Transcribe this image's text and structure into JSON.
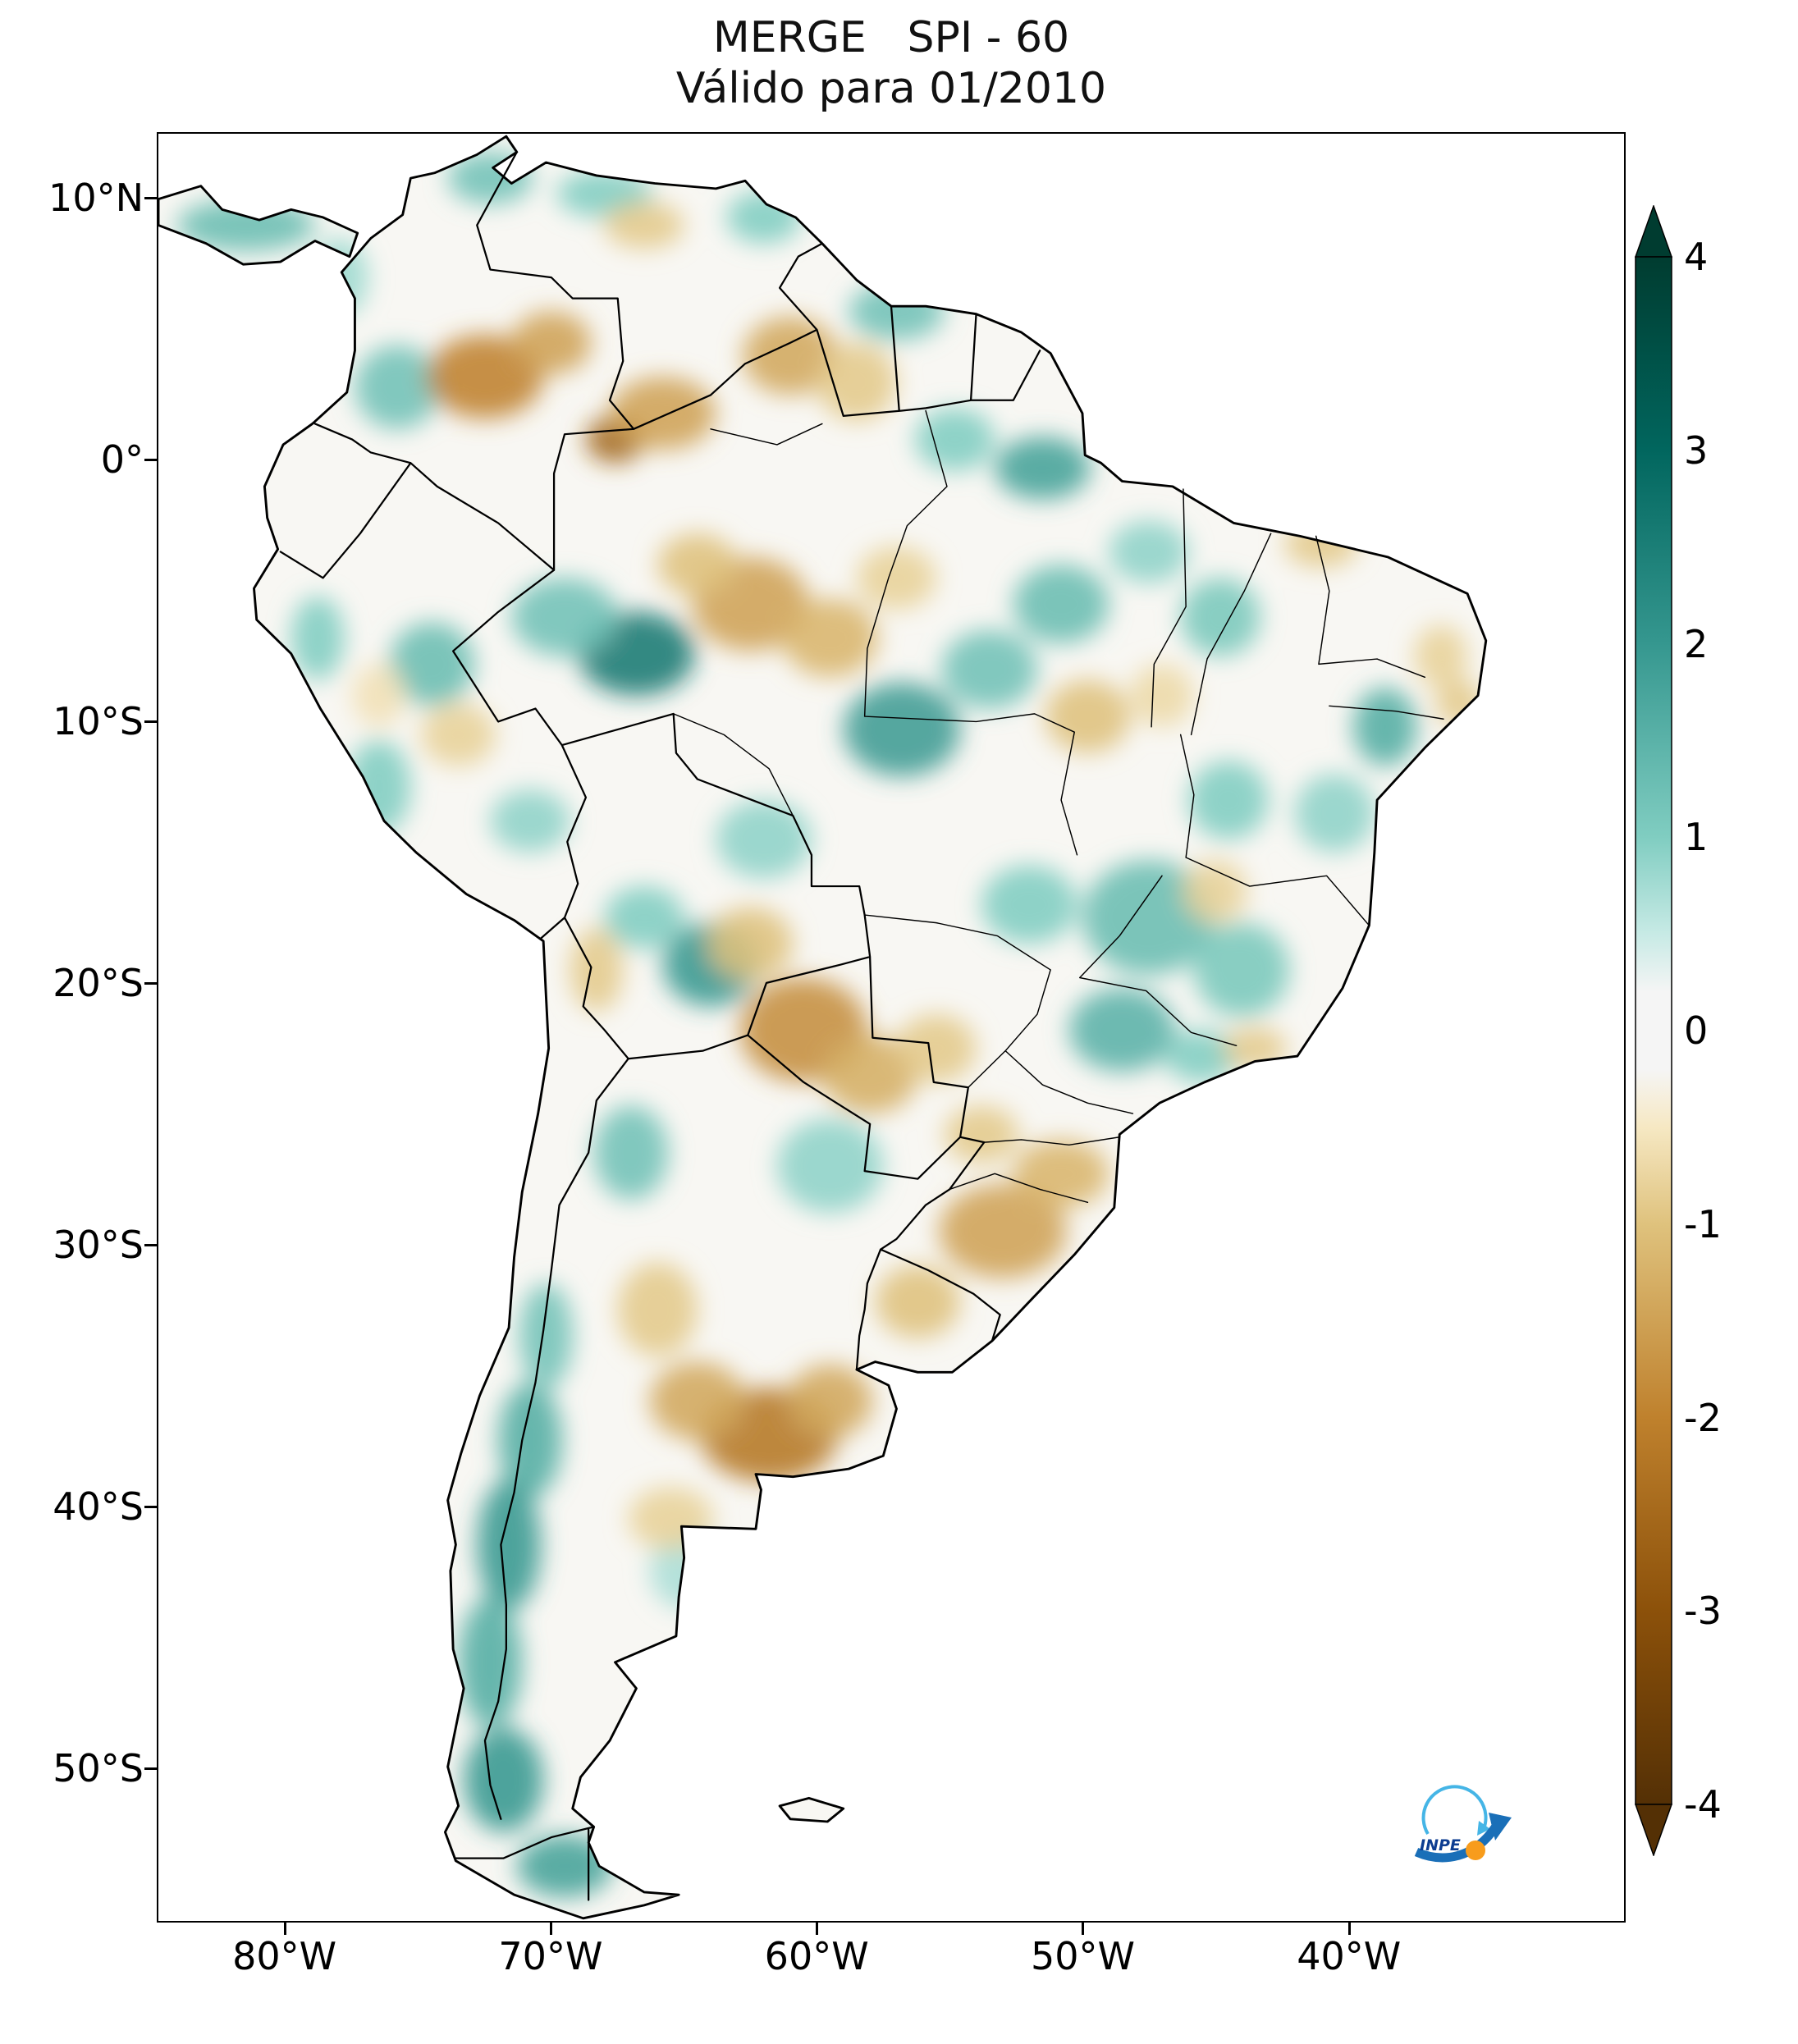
{
  "chart_data": {
    "type": "heatmap",
    "title": "MERGE   SPI - 60",
    "subtitle": "Válido para 01/2010",
    "variable": "SPI-60 (Standardized Precipitation Index, 60 months)",
    "region": "South America",
    "colormap": "BrBG",
    "x_axis": {
      "tick_labels": [
        "80°W",
        "70°W",
        "60°W",
        "50°W",
        "40°W"
      ],
      "tick_lons": [
        -80,
        -70,
        -60,
        -50,
        -40
      ],
      "range_lon": [
        -84.8,
        -29.6
      ]
    },
    "y_axis": {
      "tick_labels": [
        "10°N",
        "0°",
        "10°S",
        "20°S",
        "30°S",
        "40°S",
        "50°S"
      ],
      "tick_lats": [
        10,
        0,
        -10,
        -20,
        -30,
        -40,
        -50
      ],
      "range_lat": [
        -55.9,
        12.5
      ]
    },
    "colorbar": {
      "tick_labels": [
        "4",
        "3",
        "2",
        "1",
        "0",
        "-1",
        "-2",
        "-3",
        "-4"
      ],
      "tick_values": [
        4,
        3,
        2,
        1,
        0,
        -1,
        -2,
        -3,
        -4
      ],
      "min": -4,
      "max": 4,
      "extend": "both",
      "stops": [
        {
          "value": 4,
          "color": "#003c30"
        },
        {
          "value": 3,
          "color": "#01665e"
        },
        {
          "value": 2,
          "color": "#35978f"
        },
        {
          "value": 1,
          "color": "#80cdc1"
        },
        {
          "value": 0.5,
          "color": "#c7eae5"
        },
        {
          "value": 0.2,
          "color": "#f5f5f5"
        },
        {
          "value": -0.2,
          "color": "#f5f5f5"
        },
        {
          "value": -0.5,
          "color": "#f6e8c3"
        },
        {
          "value": -1,
          "color": "#dfc27d"
        },
        {
          "value": -2,
          "color": "#bf812d"
        },
        {
          "value": -3,
          "color": "#8c510a"
        },
        {
          "value": -4,
          "color": "#543005"
        }
      ]
    },
    "anomalies_format": [
      "lon",
      "lat",
      "rx_deg",
      "ry_deg",
      "spi"
    ],
    "anomalies": [
      [
        -72.3,
        10.8,
        1.6,
        1.0,
        1.2
      ],
      [
        -68.0,
        10.2,
        1.8,
        0.9,
        1.0
      ],
      [
        -62.0,
        9.3,
        1.4,
        1.0,
        1.0
      ],
      [
        -57.0,
        5.7,
        1.8,
        1.1,
        1.2
      ],
      [
        -75.8,
        2.8,
        1.6,
        1.6,
        1.2
      ],
      [
        -78.0,
        7.0,
        1.1,
        1.5,
        0.8
      ],
      [
        -81.5,
        9.0,
        2.6,
        1.0,
        1.3
      ],
      [
        -66.8,
        -7.4,
        2.2,
        1.6,
        2.6
      ],
      [
        -69.5,
        -6.0,
        2.0,
        1.5,
        1.2
      ],
      [
        -74.5,
        -7.8,
        1.6,
        1.6,
        1.3
      ],
      [
        -78.8,
        -6.8,
        1.0,
        1.6,
        1.0
      ],
      [
        -76.5,
        -12.5,
        1.2,
        1.8,
        1.0
      ],
      [
        -70.8,
        -13.8,
        1.5,
        1.2,
        0.9
      ],
      [
        -64.0,
        -19.3,
        1.8,
        1.6,
        2.0
      ],
      [
        -66.5,
        -17.5,
        1.5,
        1.2,
        1.0
      ],
      [
        -62.0,
        -14.5,
        1.8,
        1.5,
        0.9
      ],
      [
        -56.8,
        -10.3,
        2.2,
        1.8,
        1.9
      ],
      [
        -53.5,
        -8.0,
        1.8,
        1.5,
        1.2
      ],
      [
        -50.8,
        -5.5,
        1.8,
        1.5,
        1.3
      ],
      [
        -51.5,
        -0.3,
        1.8,
        1.2,
        1.8
      ],
      [
        -54.8,
        0.8,
        1.5,
        1.2,
        1.0
      ],
      [
        -47.5,
        -3.5,
        1.5,
        1.2,
        0.9
      ],
      [
        -44.8,
        -6.0,
        1.5,
        1.5,
        1.1
      ],
      [
        -38.6,
        -10.2,
        1.2,
        1.5,
        1.6
      ],
      [
        -40.5,
        -13.5,
        1.5,
        1.5,
        0.9
      ],
      [
        -44.5,
        -13.0,
        1.5,
        1.5,
        1.0
      ],
      [
        -47.5,
        -17.5,
        2.5,
        2.2,
        1.3
      ],
      [
        -44.0,
        -19.5,
        1.8,
        1.8,
        1.1
      ],
      [
        -48.5,
        -21.8,
        2.0,
        1.6,
        1.5
      ],
      [
        -45.5,
        -22.8,
        1.4,
        1.0,
        1.0
      ],
      [
        -52.0,
        -17.0,
        1.8,
        1.5,
        1.0
      ],
      [
        -59.5,
        -27.0,
        2.0,
        1.8,
        0.9
      ],
      [
        -67.0,
        -26.5,
        1.4,
        1.8,
        1.2
      ],
      [
        -70.2,
        -33.5,
        1.0,
        2.0,
        1.2
      ],
      [
        -70.8,
        -37.5,
        1.2,
        2.2,
        1.6
      ],
      [
        -71.6,
        -41.5,
        1.2,
        2.5,
        2.0
      ],
      [
        -72.3,
        -46.0,
        1.2,
        2.5,
        1.6
      ],
      [
        -71.8,
        -50.5,
        1.5,
        2.0,
        2.0
      ],
      [
        -69.5,
        -53.8,
        1.8,
        1.2,
        1.8
      ],
      [
        -64.8,
        -42.5,
        1.5,
        1.5,
        0.7
      ],
      [
        -72.5,
        3.2,
        2.2,
        1.6,
        -2.0
      ],
      [
        -70.0,
        4.5,
        1.5,
        1.2,
        -1.5
      ],
      [
        -67.6,
        0.8,
        1.1,
        0.9,
        -2.6
      ],
      [
        -65.8,
        1.8,
        2.0,
        1.4,
        -1.5
      ],
      [
        -66.5,
        9.0,
        1.5,
        0.9,
        -0.9
      ],
      [
        -61.0,
        4.0,
        1.8,
        1.5,
        -1.4
      ],
      [
        -58.5,
        3.0,
        1.5,
        1.5,
        -0.9
      ],
      [
        -62.5,
        -5.5,
        2.2,
        1.8,
        -1.5
      ],
      [
        -59.5,
        -6.8,
        1.8,
        1.5,
        -1.2
      ],
      [
        -64.5,
        -4.0,
        1.5,
        1.2,
        -1.0
      ],
      [
        -57.0,
        -4.5,
        1.5,
        1.2,
        -0.8
      ],
      [
        -49.8,
        -9.8,
        1.6,
        1.4,
        -1.0
      ],
      [
        -47.0,
        -9.0,
        1.2,
        1.2,
        -0.7
      ],
      [
        -41.0,
        -3.2,
        1.4,
        0.9,
        -0.9
      ],
      [
        -36.5,
        -7.5,
        1.0,
        1.2,
        -0.8
      ],
      [
        -60.5,
        -21.8,
        2.4,
        2.0,
        -1.8
      ],
      [
        -58.0,
        -23.5,
        1.8,
        1.5,
        -1.3
      ],
      [
        -55.5,
        -22.5,
        1.5,
        1.3,
        -0.9
      ],
      [
        -62.5,
        -18.5,
        1.6,
        1.4,
        -1.0
      ],
      [
        -68.3,
        -19.5,
        1.0,
        1.6,
        -0.9
      ],
      [
        -53.0,
        -29.5,
        2.4,
        1.8,
        -1.5
      ],
      [
        -50.8,
        -27.3,
        1.8,
        1.3,
        -1.2
      ],
      [
        -53.8,
        -25.8,
        1.4,
        1.1,
        -0.9
      ],
      [
        -56.2,
        -32.2,
        1.6,
        1.4,
        -1.0
      ],
      [
        -61.8,
        -37.3,
        2.6,
        1.8,
        -2.2
      ],
      [
        -64.5,
        -36.0,
        1.8,
        1.5,
        -1.4
      ],
      [
        -59.5,
        -36.0,
        1.6,
        1.4,
        -1.4
      ],
      [
        -66.0,
        -32.5,
        1.5,
        1.8,
        -0.9
      ],
      [
        -65.5,
        -40.5,
        1.6,
        1.2,
        -0.8
      ],
      [
        -43.5,
        -22.5,
        1.2,
        0.8,
        -0.9
      ],
      [
        -45.0,
        -16.5,
        1.2,
        1.2,
        -0.8
      ],
      [
        -35.8,
        -9.3,
        0.9,
        0.9,
        -0.9
      ],
      [
        -73.5,
        -10.5,
        1.4,
        1.2,
        -0.8
      ],
      [
        -76.5,
        -9.0,
        1.0,
        1.2,
        -0.6
      ]
    ]
  },
  "logo": {
    "text": "INPE"
  }
}
